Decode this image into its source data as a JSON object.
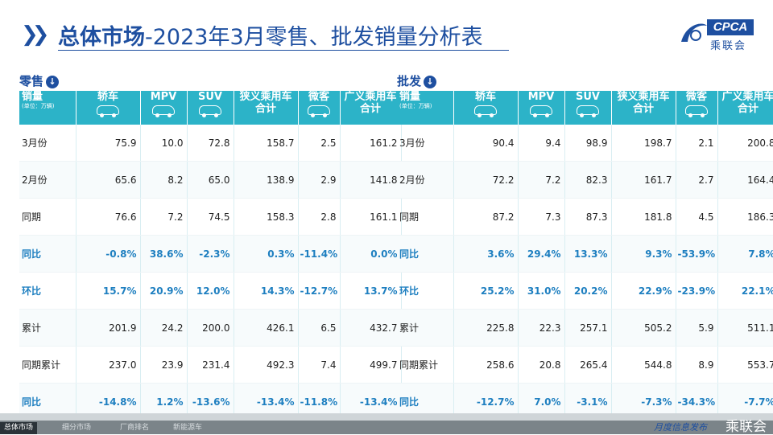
{
  "header": {
    "title_bold": "总体市场",
    "title_rest": "-2023年3月零售、批发销量分析表",
    "logo_text": "CPCA",
    "logo_cn": "乘联会"
  },
  "columns": {
    "first": "销量",
    "first_unit": "(单位：万辆)",
    "c1": "轿车",
    "c2": "MPV",
    "c3": "SUV",
    "c4a": "狭义乘用车",
    "c4b": "合计",
    "c5": "微客",
    "c6a": "广义乘用车",
    "c6b": "合计"
  },
  "retail": {
    "label": "零售",
    "rows": [
      {
        "label": "3月份",
        "v": [
          "75.9",
          "10.0",
          "72.8",
          "158.7",
          "2.5",
          "161.2"
        ]
      },
      {
        "label": "2月份",
        "v": [
          "65.6",
          "8.2",
          "65.0",
          "138.9",
          "2.9",
          "141.8"
        ]
      },
      {
        "label": "同期",
        "v": [
          "76.6",
          "7.2",
          "74.5",
          "158.3",
          "2.8",
          "161.1"
        ]
      },
      {
        "label": "同比",
        "v": [
          "-0.8%",
          "38.6%",
          "-2.3%",
          "0.3%",
          "-11.4%",
          "0.0%"
        ]
      },
      {
        "label": "环比",
        "v": [
          "15.7%",
          "20.9%",
          "12.0%",
          "14.3%",
          "-12.7%",
          "13.7%"
        ]
      },
      {
        "label": "累计",
        "v": [
          "201.9",
          "24.2",
          "200.0",
          "426.1",
          "6.5",
          "432.7"
        ]
      },
      {
        "label": "同期累计",
        "v": [
          "237.0",
          "23.9",
          "231.4",
          "492.3",
          "7.4",
          "499.7"
        ]
      },
      {
        "label": "同比",
        "v": [
          "-14.8%",
          "1.2%",
          "-13.6%",
          "-13.4%",
          "-11.8%",
          "-13.4%"
        ]
      }
    ]
  },
  "wholesale": {
    "label": "批发",
    "rows": [
      {
        "label": "3月份",
        "v": [
          "90.4",
          "9.4",
          "98.9",
          "198.7",
          "2.1",
          "200.8"
        ]
      },
      {
        "label": "2月份",
        "v": [
          "72.2",
          "7.2",
          "82.3",
          "161.7",
          "2.7",
          "164.4"
        ]
      },
      {
        "label": "同期",
        "v": [
          "87.2",
          "7.3",
          "87.3",
          "181.8",
          "4.5",
          "186.3"
        ]
      },
      {
        "label": "同比",
        "v": [
          "3.6%",
          "29.4%",
          "13.3%",
          "9.3%",
          "-53.9%",
          "7.8%"
        ]
      },
      {
        "label": "环比",
        "v": [
          "25.2%",
          "31.0%",
          "20.2%",
          "22.9%",
          "-23.9%",
          "22.1%"
        ]
      },
      {
        "label": "累计",
        "v": [
          "225.8",
          "22.3",
          "257.1",
          "505.2",
          "5.9",
          "511.1"
        ]
      },
      {
        "label": "同期累计",
        "v": [
          "258.6",
          "20.8",
          "265.4",
          "544.8",
          "8.9",
          "553.7"
        ]
      },
      {
        "label": "同比",
        "v": [
          "-12.7%",
          "7.0%",
          "-3.1%",
          "-7.3%",
          "-34.3%",
          "-7.7%"
        ]
      }
    ]
  },
  "footer": {
    "tabs": [
      "总体市场",
      "细分市场",
      "厂商排名",
      "新能源车"
    ],
    "slogan": "月度信息发布",
    "brand": "乘联会"
  },
  "colors": {
    "accent": "#1E4FA0",
    "header_bg": "#2CB3C8",
    "highlight_text": "#1E7FC0"
  }
}
